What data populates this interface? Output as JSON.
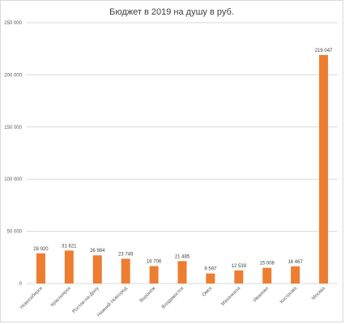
{
  "chart_data": {
    "type": "bar",
    "title": "Бюджет в 2019  на душу в руб.",
    "xlabel": "",
    "ylabel": "",
    "ylim": [
      0,
      250000
    ],
    "yticks": [
      0,
      50000,
      100000,
      150000,
      200000,
      250000
    ],
    "ytick_labels": [
      "0",
      "50 000",
      "100 000",
      "150 000",
      "200 000",
      "250 000"
    ],
    "grid": true,
    "legend": "none",
    "bar_color": "#ed7d31",
    "categories": [
      "Новосибирск",
      "Красноярск",
      "Ростов-на-Дону",
      "Нижний Новгород",
      "Воронеж",
      "Владивосток",
      "Омск",
      "Махачкала",
      "Иваново",
      "Кострома",
      "Москва"
    ],
    "values": [
      28920,
      31621,
      26984,
      23749,
      16706,
      21485,
      9597,
      12539,
      15008,
      16467,
      219047
    ],
    "value_labels": [
      "28 920",
      "31 621",
      "26 984",
      "23 749",
      "16 706",
      "21 485",
      "9 597",
      "12 539",
      "15 008",
      "16 467",
      "219 047"
    ]
  }
}
